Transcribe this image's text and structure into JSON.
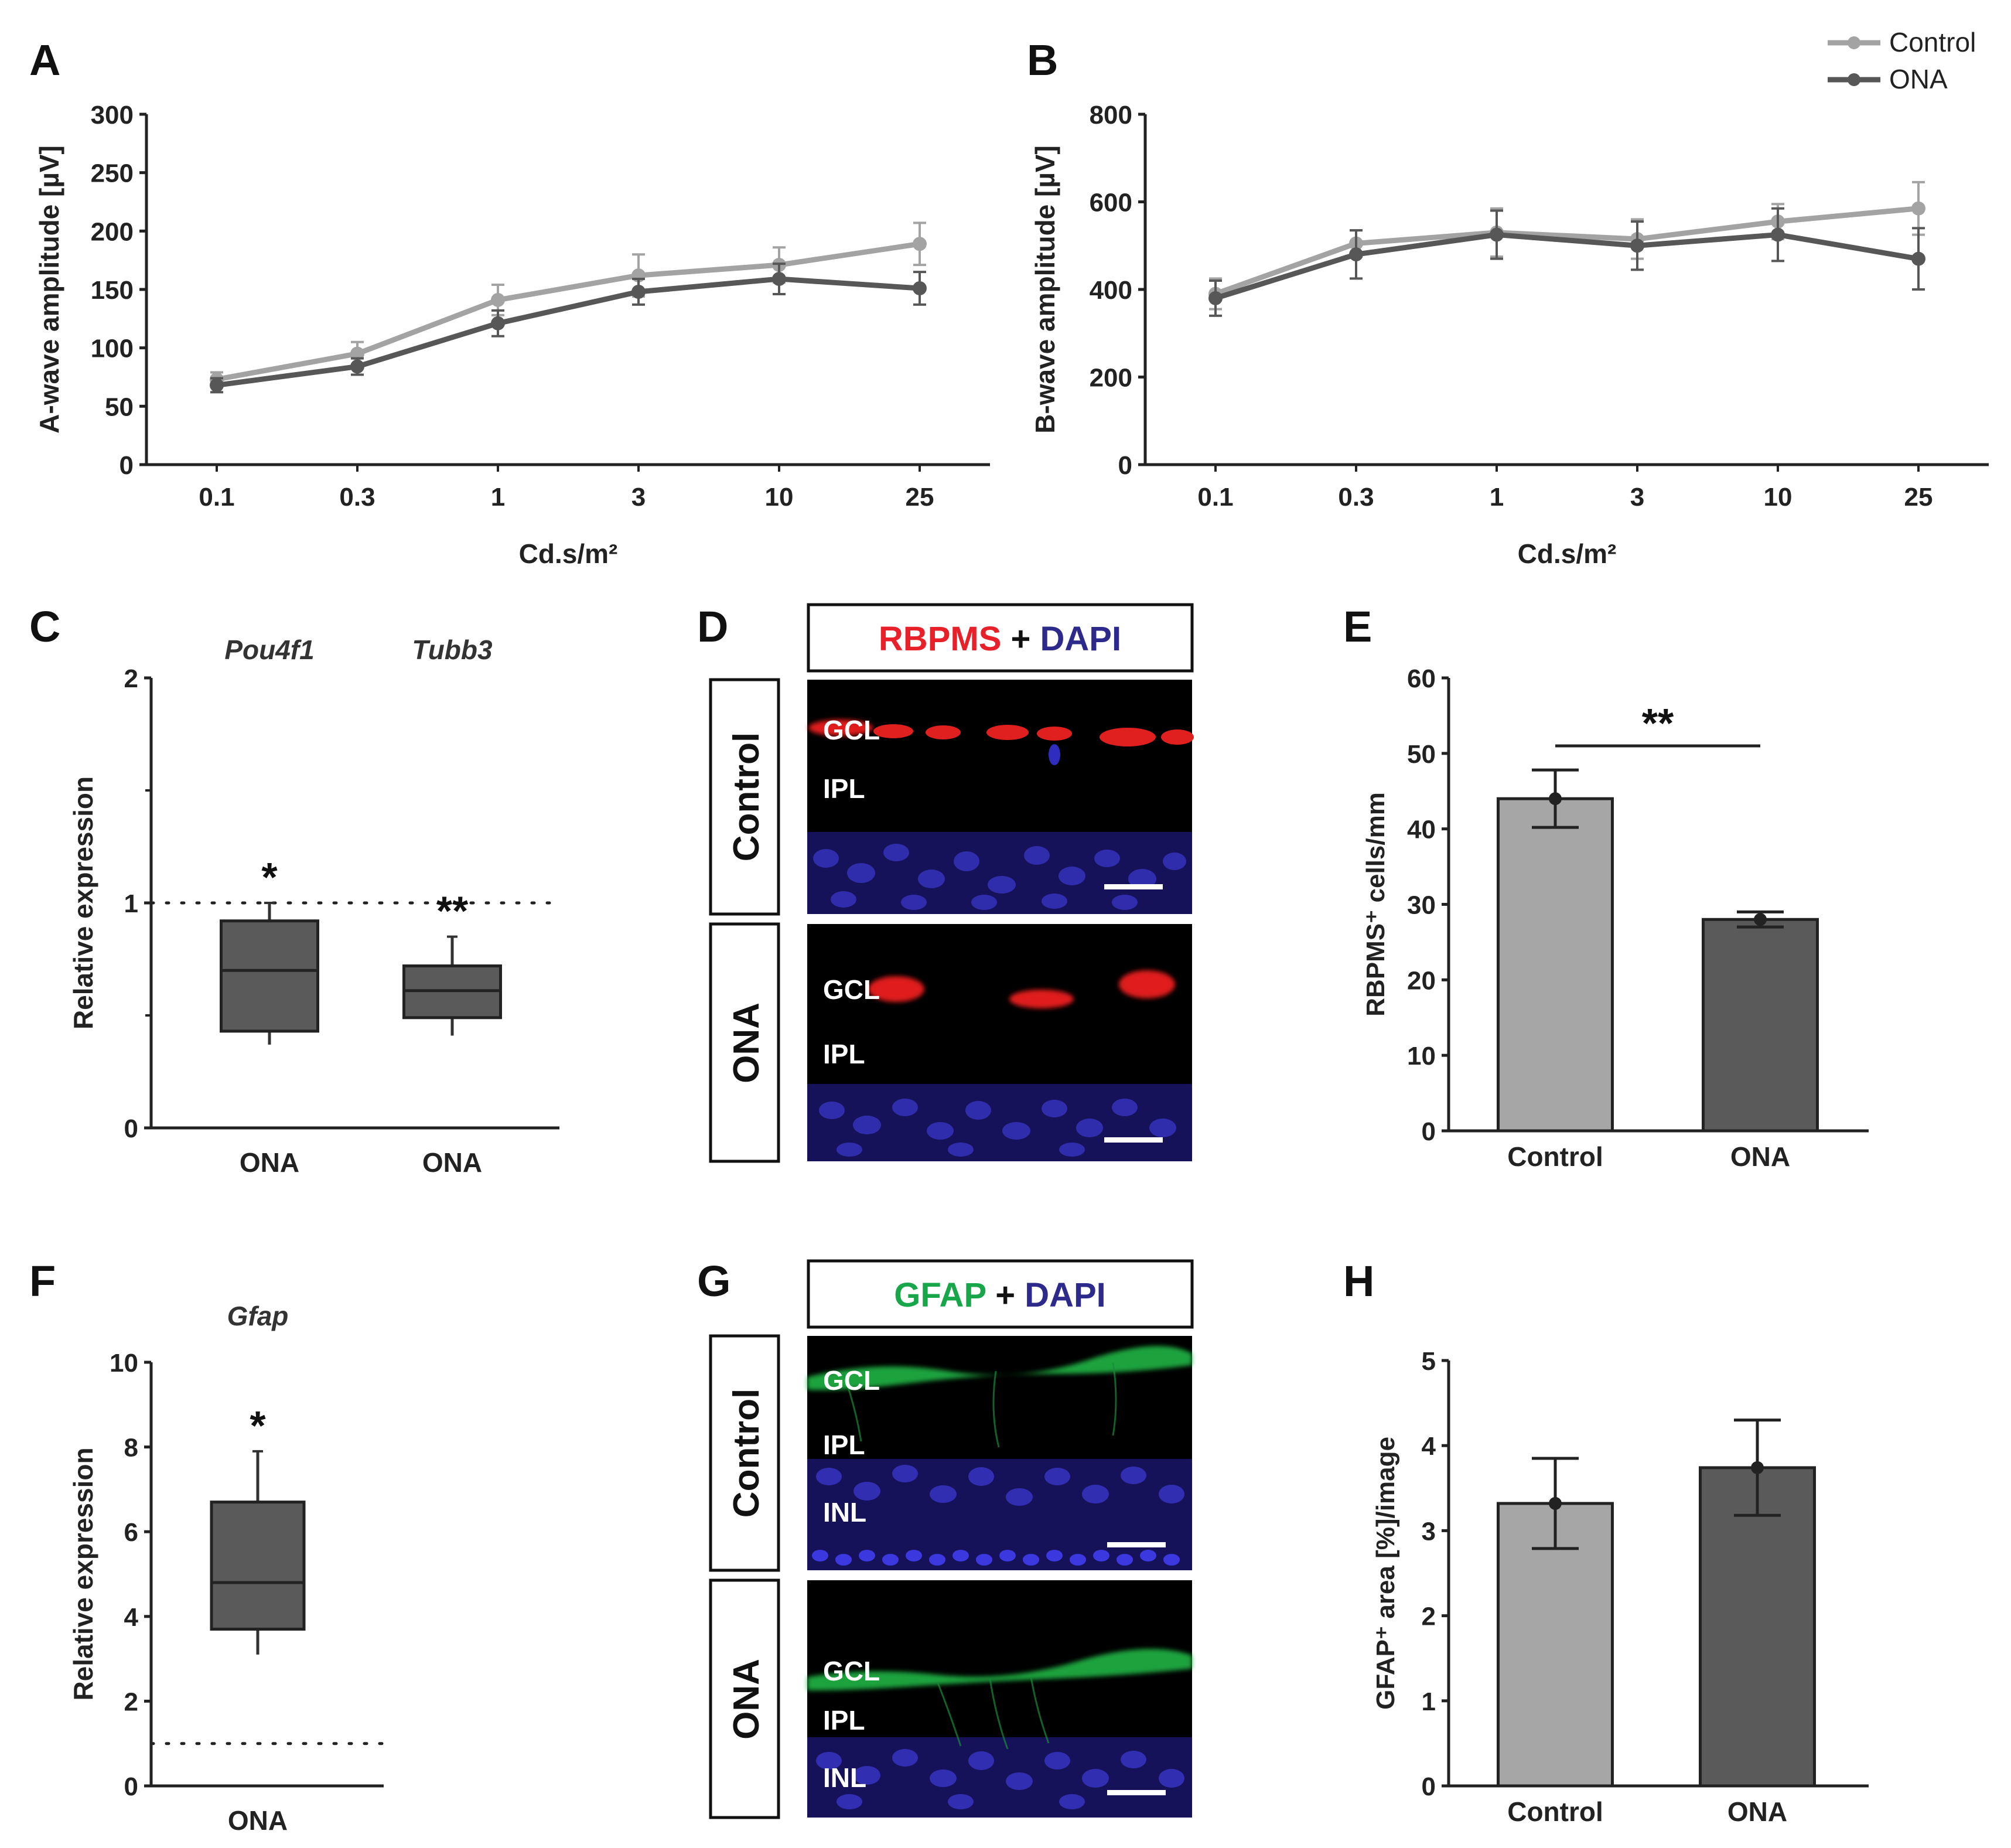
{
  "legend": {
    "items": [
      "Control",
      "ONA"
    ]
  },
  "colors": {
    "control": "#a3a3a3",
    "ona": "#575757",
    "axis": "#222222",
    "bar_control": "#a6a6a6",
    "bar_ona": "#5a5a5a",
    "box_fill": "#5a5a5a",
    "red": "#e8202a",
    "blue": "#2d2a8c",
    "green": "#17a64a"
  },
  "panels": {
    "A": {
      "letter": "A"
    },
    "B": {
      "letter": "B"
    },
    "C": {
      "letter": "C"
    },
    "D": {
      "letter": "D"
    },
    "E": {
      "letter": "E"
    },
    "F": {
      "letter": "F"
    },
    "G": {
      "letter": "G"
    },
    "H": {
      "letter": "H"
    }
  },
  "chart_data": [
    {
      "panel": "A",
      "type": "line",
      "categories": [
        "0.1",
        "0.3",
        "1",
        "3",
        "10",
        "25"
      ],
      "xlabel": "Cd.s/m²",
      "ylabel": "A-wave amplitude [µV]",
      "ylim": [
        0,
        300
      ],
      "yticks": [
        "0",
        "50",
        "100",
        "150",
        "200",
        "250",
        "300"
      ],
      "series": [
        {
          "name": "Control",
          "values": [
            73,
            95,
            141,
            162,
            171,
            189
          ],
          "errors": [
            6,
            10,
            13,
            18,
            15,
            18
          ]
        },
        {
          "name": "ONA",
          "values": [
            68,
            84,
            121,
            148,
            159,
            151
          ],
          "errors": [
            6,
            7,
            11,
            11,
            13,
            14
          ]
        }
      ]
    },
    {
      "panel": "B",
      "type": "line",
      "categories": [
        "0.1",
        "0.3",
        "1",
        "3",
        "10",
        "25"
      ],
      "xlabel": "Cd.s/m²",
      "ylabel": "B-wave amplitude [µV]",
      "ylim": [
        0,
        800
      ],
      "yticks": [
        "0",
        "200",
        "400",
        "600",
        "800"
      ],
      "series": [
        {
          "name": "Control",
          "values": [
            390,
            505,
            530,
            515,
            555,
            585
          ],
          "errors": [
            35,
            30,
            55,
            45,
            40,
            60
          ]
        },
        {
          "name": "ONA",
          "values": [
            380,
            480,
            525,
            500,
            525,
            470
          ],
          "errors": [
            40,
            55,
            55,
            55,
            60,
            70
          ]
        }
      ]
    },
    {
      "panel": "C",
      "type": "box",
      "categories": [
        "ONA",
        "ONA"
      ],
      "groups": [
        "Pou4f1",
        "Tubb3"
      ],
      "ylabel": "Relative expression",
      "ylim": [
        0,
        2
      ],
      "yticks": [
        "0",
        "1",
        "2"
      ],
      "reference": 1,
      "boxes": [
        {
          "min": 0.37,
          "q1": 0.43,
          "median": 0.7,
          "q3": 0.92,
          "max": 1.0,
          "sig": "*"
        },
        {
          "min": 0.41,
          "q1": 0.49,
          "median": 0.61,
          "q3": 0.72,
          "max": 0.85,
          "sig": "**"
        }
      ]
    },
    {
      "panel": "E",
      "type": "bar",
      "categories": [
        "Control",
        "ONA"
      ],
      "ylabel": "RBPMS⁺ cells/mm",
      "ylim": [
        0,
        60
      ],
      "yticks": [
        "0",
        "10",
        "20",
        "30",
        "40",
        "50",
        "60"
      ],
      "values": [
        44,
        28
      ],
      "errors": [
        3.8,
        1.0
      ],
      "significance": "**"
    },
    {
      "panel": "F",
      "type": "box",
      "categories": [
        "ONA"
      ],
      "groups": [
        "Gfap"
      ],
      "ylabel": "Relative expression",
      "ylim": [
        0,
        10
      ],
      "yticks": [
        "0",
        "2",
        "4",
        "6",
        "8",
        "10"
      ],
      "reference": 1,
      "boxes": [
        {
          "min": 3.1,
          "q1": 3.7,
          "median": 4.8,
          "q3": 6.7,
          "max": 7.9,
          "sig": "*"
        }
      ]
    },
    {
      "panel": "H",
      "type": "bar",
      "categories": [
        "Control",
        "ONA"
      ],
      "ylabel": "GFAP⁺ area [%]/image",
      "ylim": [
        0,
        5
      ],
      "yticks": [
        "0",
        "1",
        "2",
        "3",
        "4",
        "5"
      ],
      "values": [
        3.32,
        3.74
      ],
      "errors": [
        0.53,
        0.56
      ]
    }
  ],
  "micrographs": {
    "D": {
      "title_parts": [
        "RBPMS",
        " + ",
        "DAPI"
      ],
      "rows": [
        {
          "row_label": "Control",
          "layers": [
            "GCL",
            "IPL"
          ]
        },
        {
          "row_label": "ONA",
          "layers": [
            "GCL",
            "IPL"
          ]
        }
      ]
    },
    "G": {
      "title_parts": [
        "GFAP",
        " + ",
        "DAPI"
      ],
      "rows": [
        {
          "row_label": "Control",
          "layers": [
            "GCL",
            "IPL",
            "INL"
          ]
        },
        {
          "row_label": "ONA",
          "layers": [
            "GCL",
            "IPL",
            "INL"
          ]
        }
      ]
    }
  }
}
